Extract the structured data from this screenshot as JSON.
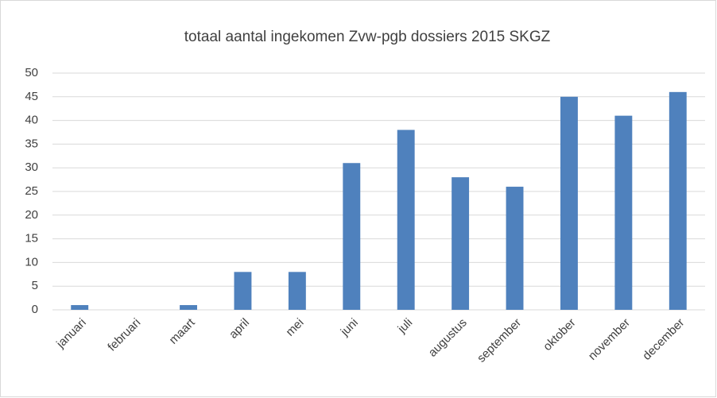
{
  "chart_data": {
    "type": "bar",
    "title": "totaal aantal ingekomen Zvw-pgb dossiers 2015 SKGZ",
    "categories": [
      "januari",
      "februari",
      "maart",
      "april",
      "mei",
      "juni",
      "juli",
      "augustus",
      "september",
      "oktober",
      "november",
      "december"
    ],
    "values": [
      1,
      0,
      1,
      8,
      8,
      31,
      38,
      28,
      26,
      45,
      41,
      46
    ],
    "color": "#4f81bd",
    "ylim": [
      0,
      50
    ],
    "yticks": [
      0,
      5,
      10,
      15,
      20,
      25,
      30,
      35,
      40,
      45,
      50
    ],
    "grid": true
  }
}
